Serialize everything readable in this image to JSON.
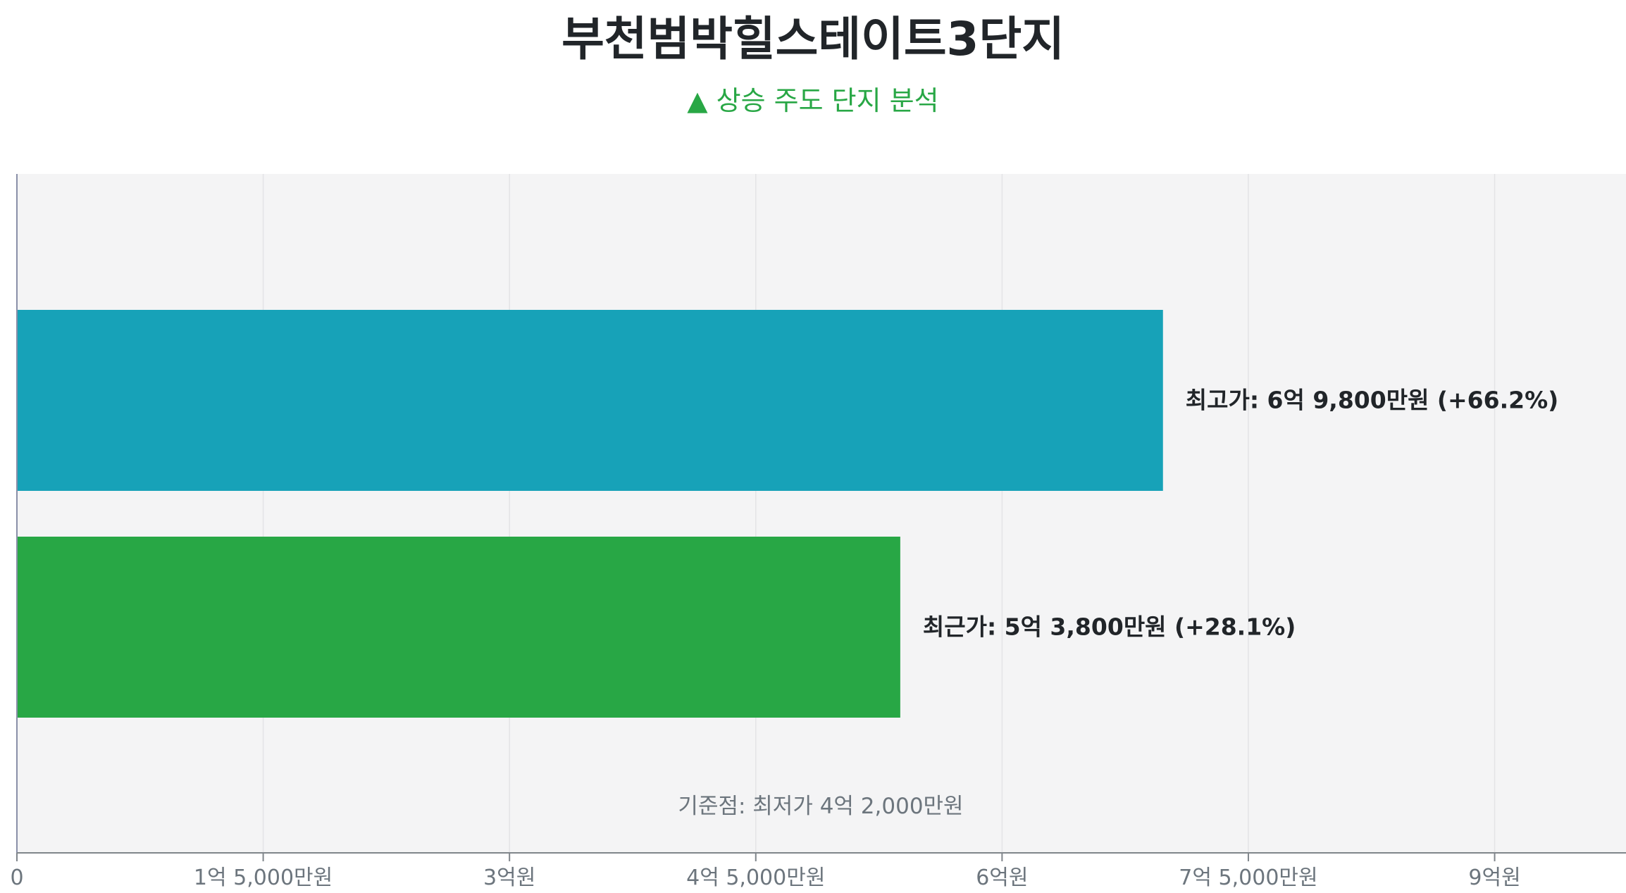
{
  "title": "부천범박힐스테이트3단지",
  "subtitle": "▲ 상승 주도 단지 분석",
  "chart_data": {
    "type": "bar",
    "orientation": "horizontal",
    "unit": "억원",
    "categories": [
      "최고가",
      "최근가"
    ],
    "values": [
      6.98,
      5.38
    ],
    "data_labels": [
      "최고가: 6억 9,800만원 (+66.2%)",
      "최근가: 5억 3,800만원 (+28.1%)"
    ],
    "colors": [
      "#17a2b8",
      "#28a745"
    ],
    "xlim": [
      0,
      9.8
    ],
    "xticks": [
      0,
      1.5,
      3,
      4.5,
      6,
      7.5,
      9
    ],
    "xtick_labels": [
      "0",
      "1억 5,000만원",
      "3억원",
      "4억 5,000만원",
      "6억원",
      "7억 5,000만원",
      "9억원"
    ],
    "annotation": "기준점: 최저가 4억 2,000만원",
    "grid": true,
    "background": "#f4f4f5"
  }
}
